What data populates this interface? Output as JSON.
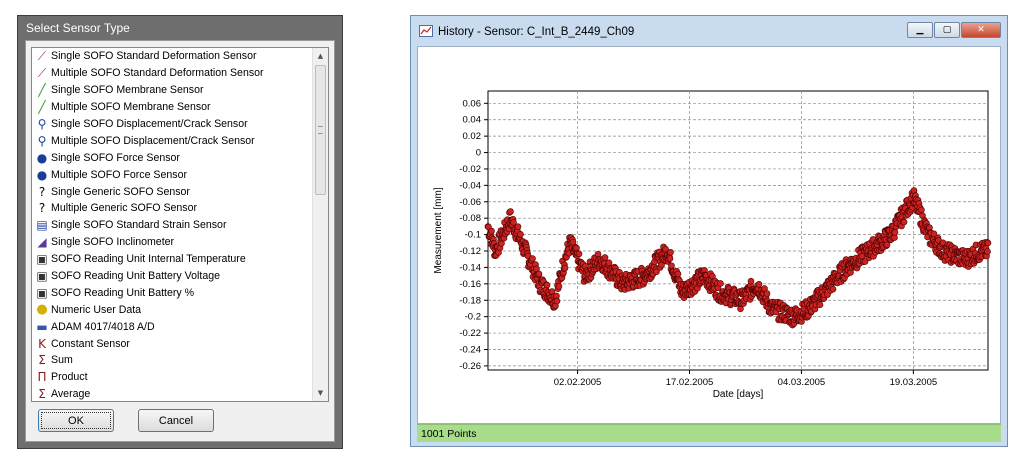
{
  "dialog": {
    "title": "Select Sensor Type",
    "ok_label": "OK",
    "cancel_label": "Cancel",
    "items": [
      {
        "label": "Single SOFO Standard Deformation Sensor",
        "icon": "deformation-sensor-icon",
        "color": "#9a2a8a"
      },
      {
        "label": "Multiple SOFO Standard Deformation Sensor",
        "icon": "multi-deformation-sensor-icon",
        "color": "#9a2a8a"
      },
      {
        "label": "Single SOFO Membrane Sensor",
        "icon": "membrane-sensor-icon",
        "color": "#2e9a2e"
      },
      {
        "label": "Multiple SOFO Membrane Sensor",
        "icon": "multi-membrane-sensor-icon",
        "color": "#2e9a2e"
      },
      {
        "label": "Single SOFO Displacement/Crack Sensor",
        "icon": "crack-sensor-icon",
        "color": "#1a3d9a"
      },
      {
        "label": "Multiple SOFO Displacement/Crack Sensor",
        "icon": "multi-crack-sensor-icon",
        "color": "#1a3d9a"
      },
      {
        "label": "Single SOFO Force Sensor",
        "icon": "force-sensor-icon",
        "color": "#1a3d9a"
      },
      {
        "label": "Multiple SOFO Force Sensor",
        "icon": "multi-force-sensor-icon",
        "color": "#1a3d9a"
      },
      {
        "label": "Single Generic SOFO Sensor",
        "icon": "generic-sensor-icon",
        "color": "#000000"
      },
      {
        "label": "Multiple Generic SOFO Sensor",
        "icon": "multi-generic-sensor-icon",
        "color": "#000000"
      },
      {
        "label": "Single SOFO Standard Strain Sensor",
        "icon": "strain-sensor-icon",
        "color": "#1a3d9a"
      },
      {
        "label": "Single SOFO Inclinometer",
        "icon": "inclinometer-icon",
        "color": "#5a3a9a"
      },
      {
        "label": "SOFO Reading Unit Internal Temperature",
        "icon": "temperature-icon",
        "color": "#333333"
      },
      {
        "label": "SOFO Reading Unit Battery Voltage",
        "icon": "battery-voltage-icon",
        "color": "#333333"
      },
      {
        "label": "SOFO Reading Unit Battery %",
        "icon": "battery-percent-icon",
        "color": "#333333"
      },
      {
        "label": "Numeric User Data",
        "icon": "user-data-icon",
        "color": "#d4b000"
      },
      {
        "label": "ADAM 4017/4018 A/D",
        "icon": "adam-icon",
        "color": "#3355aa"
      },
      {
        "label": "Constant Sensor",
        "icon": "constant-icon",
        "color": "#8a1a1a"
      },
      {
        "label": "Sum",
        "icon": "sum-icon",
        "color": "#8a1a1a"
      },
      {
        "label": "Product",
        "icon": "product-icon",
        "color": "#8a1a1a"
      },
      {
        "label": "Average",
        "icon": "average-icon",
        "color": "#8a1a1a"
      }
    ]
  },
  "window": {
    "title": "History - Sensor: C_Int_B_2449_Ch09",
    "status": "1001 Points"
  },
  "chart_data": {
    "type": "scatter",
    "title": "",
    "xlabel": "Date [days]",
    "ylabel": "Measurement [mm]",
    "xlim": [
      "2005-01-21",
      "2005-03-29"
    ],
    "ylim": [
      -0.265,
      0.075
    ],
    "xticks": [
      "02.02.2005",
      "17.02.2005",
      "04.03.2005",
      "19.03.2005"
    ],
    "yticks": [
      "0.06",
      "0.04",
      "0.02",
      "0",
      "-0.02",
      "-0.04",
      "-0.06",
      "-0.08",
      "-0.1",
      "-0.12",
      "-0.14",
      "-0.16",
      "-0.18",
      "-0.2",
      "-0.22",
      "-0.24",
      "-0.26"
    ],
    "grid": true,
    "marker_color": "#cc2222",
    "n_points": 1001,
    "trend": [
      {
        "x": "2005-01-21",
        "y": -0.09
      },
      {
        "x": "2005-01-22",
        "y": -0.12
      },
      {
        "x": "2005-01-24",
        "y": -0.08
      },
      {
        "x": "2005-01-26",
        "y": -0.12
      },
      {
        "x": "2005-01-28",
        "y": -0.16
      },
      {
        "x": "2005-01-30",
        "y": -0.18
      },
      {
        "x": "2005-01-31",
        "y": -0.14
      },
      {
        "x": "2005-02-01",
        "y": -0.11
      },
      {
        "x": "2005-02-03",
        "y": -0.15
      },
      {
        "x": "2005-02-05",
        "y": -0.13
      },
      {
        "x": "2005-02-08",
        "y": -0.16
      },
      {
        "x": "2005-02-11",
        "y": -0.15
      },
      {
        "x": "2005-02-14",
        "y": -0.12
      },
      {
        "x": "2005-02-16",
        "y": -0.17
      },
      {
        "x": "2005-02-19",
        "y": -0.15
      },
      {
        "x": "2005-02-21",
        "y": -0.17
      },
      {
        "x": "2005-02-24",
        "y": -0.18
      },
      {
        "x": "2005-02-26",
        "y": -0.16
      },
      {
        "x": "2005-02-28",
        "y": -0.19
      },
      {
        "x": "2005-03-03",
        "y": -0.2
      },
      {
        "x": "2005-03-05",
        "y": -0.19
      },
      {
        "x": "2005-03-08",
        "y": -0.16
      },
      {
        "x": "2005-03-10",
        "y": -0.14
      },
      {
        "x": "2005-03-13",
        "y": -0.12
      },
      {
        "x": "2005-03-16",
        "y": -0.1
      },
      {
        "x": "2005-03-18",
        "y": -0.07
      },
      {
        "x": "2005-03-19",
        "y": -0.055
      },
      {
        "x": "2005-03-21",
        "y": -0.1
      },
      {
        "x": "2005-03-23",
        "y": -0.12
      },
      {
        "x": "2005-03-26",
        "y": -0.13
      },
      {
        "x": "2005-03-28",
        "y": -0.12
      }
    ]
  }
}
